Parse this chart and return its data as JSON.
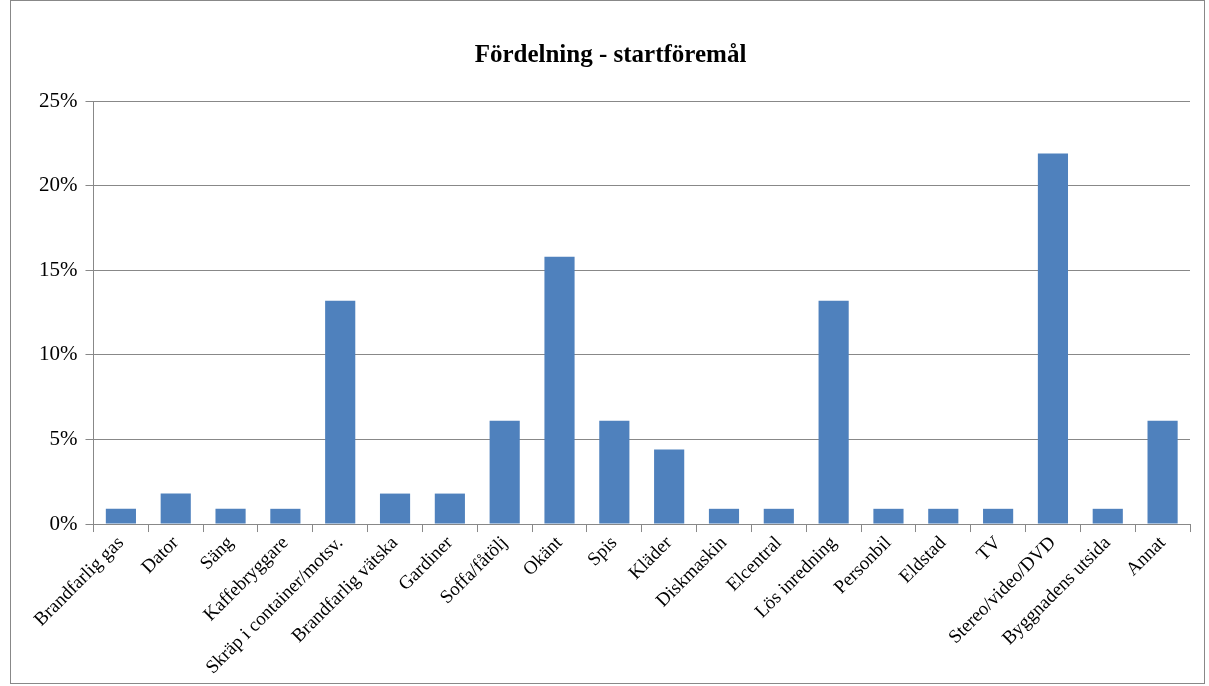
{
  "chart_data": {
    "type": "bar",
    "title": "Fördelning - startföremål",
    "categories": [
      "Brandfarlig gas",
      "Dator",
      "Säng",
      "Kaffebryggare",
      "Skräp i container/motsv.",
      "Brandfarlig vätska",
      "Gardiner",
      "Soffa/fåtölj",
      "Okänt",
      "Spis",
      "Kläder",
      "Diskmaskin",
      "Elcentral",
      "Lös inredning",
      "Personbil",
      "Eldstad",
      "TV",
      "Stereo/video/DVD",
      "Byggnadens utsida",
      "Annat"
    ],
    "values": [
      0.9,
      1.8,
      0.9,
      0.9,
      13.2,
      1.8,
      1.8,
      6.1,
      15.8,
      6.1,
      4.4,
      0.9,
      0.9,
      13.2,
      0.9,
      0.9,
      0.9,
      21.9,
      0.9,
      6.1
    ],
    "color": "#4f81bd",
    "ylim": [
      0,
      25
    ],
    "yticks": [
      {
        "value": 0,
        "label": "0%"
      },
      {
        "value": 5,
        "label": "5%"
      },
      {
        "value": 10,
        "label": "10%"
      },
      {
        "value": 15,
        "label": "15%"
      },
      {
        "value": 20,
        "label": "20%"
      },
      {
        "value": 25,
        "label": "25%"
      }
    ],
    "grid": "y",
    "legend": false
  }
}
